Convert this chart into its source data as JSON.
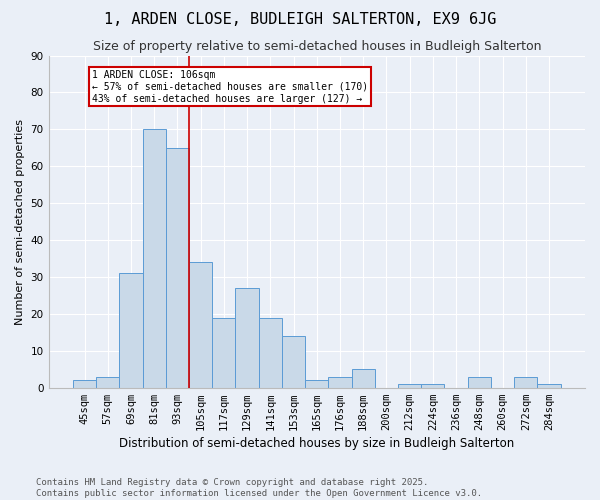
{
  "title": "1, ARDEN CLOSE, BUDLEIGH SALTERTON, EX9 6JG",
  "subtitle": "Size of property relative to semi-detached houses in Budleigh Salterton",
  "xlabel": "Distribution of semi-detached houses by size in Budleigh Salterton",
  "ylabel": "Number of semi-detached properties",
  "bar_labels": [
    "45sqm",
    "57sqm",
    "69sqm",
    "81sqm",
    "93sqm",
    "105sqm",
    "117sqm",
    "129sqm",
    "141sqm",
    "153sqm",
    "165sqm",
    "176sqm",
    "188sqm",
    "200sqm",
    "212sqm",
    "224sqm",
    "236sqm",
    "248sqm",
    "260sqm",
    "272sqm",
    "284sqm"
  ],
  "bar_values": [
    2,
    3,
    31,
    70,
    65,
    34,
    19,
    27,
    19,
    14,
    2,
    3,
    5,
    0,
    1,
    1,
    0,
    3,
    0,
    3,
    1
  ],
  "bar_color": "#c9d9e8",
  "bar_edge_color": "#5b9bd5",
  "vline_pos": 4.5,
  "vline_color": "#cc0000",
  "annotation_title": "1 ARDEN CLOSE: 106sqm",
  "annotation_line1": "← 57% of semi-detached houses are smaller (170)",
  "annotation_line2": "43% of semi-detached houses are larger (127) →",
  "annotation_box_color": "#ffffff",
  "annotation_border_color": "#cc0000",
  "ylim": [
    0,
    90
  ],
  "yticks": [
    0,
    10,
    20,
    30,
    40,
    50,
    60,
    70,
    80,
    90
  ],
  "footer": "Contains HM Land Registry data © Crown copyright and database right 2025.\nContains public sector information licensed under the Open Government Licence v3.0.",
  "bg_color": "#eaeff7",
  "plot_bg_color": "#eaeff7",
  "title_fontsize": 11,
  "subtitle_fontsize": 9,
  "xlabel_fontsize": 8.5,
  "ylabel_fontsize": 8,
  "tick_fontsize": 7.5,
  "footer_fontsize": 6.5
}
